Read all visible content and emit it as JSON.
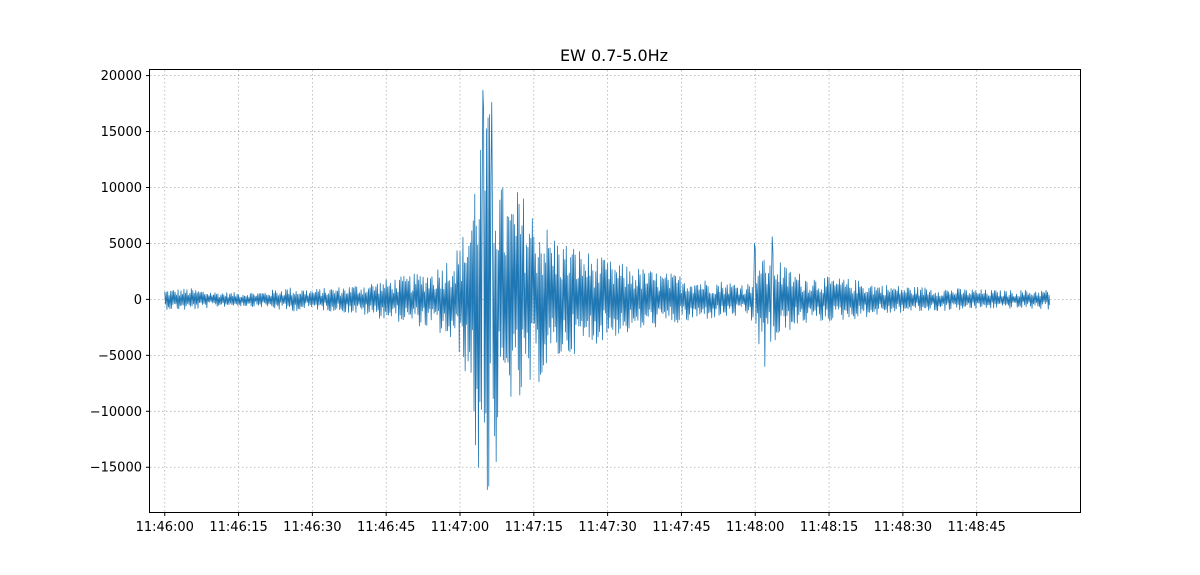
{
  "chart_data": {
    "type": "line",
    "title": "EW 0.7-5.0Hz",
    "xlabel": "",
    "ylabel": "",
    "x_unit": "seconds after 11:46:00",
    "xlim": [
      -3,
      186
    ],
    "ylim": [
      -19000,
      20500
    ],
    "grid": true,
    "legend": "none",
    "x_ticks": [
      {
        "value": 0,
        "label": "11:46:00"
      },
      {
        "value": 15,
        "label": "11:46:15"
      },
      {
        "value": 30,
        "label": "11:46:30"
      },
      {
        "value": 45,
        "label": "11:46:45"
      },
      {
        "value": 60,
        "label": "11:47:00"
      },
      {
        "value": 75,
        "label": "11:47:15"
      },
      {
        "value": 90,
        "label": "11:47:30"
      },
      {
        "value": 105,
        "label": "11:47:45"
      },
      {
        "value": 120,
        "label": "11:48:00"
      },
      {
        "value": 135,
        "label": "11:48:15"
      },
      {
        "value": 150,
        "label": "11:48:30"
      },
      {
        "value": 165,
        "label": "11:48:45"
      }
    ],
    "y_ticks": [
      {
        "value": 20000,
        "label": "20000"
      },
      {
        "value": 15000,
        "label": "15000"
      },
      {
        "value": 10000,
        "label": "10000"
      },
      {
        "value": 5000,
        "label": "5000"
      },
      {
        "value": 0,
        "label": "0"
      },
      {
        "value": -5000,
        "label": "−5000"
      },
      {
        "value": -10000,
        "label": "−10000"
      },
      {
        "value": -15000,
        "label": "−15000"
      }
    ],
    "series": [
      {
        "color": "#1f77b4",
        "x_range": [
          0,
          180
        ],
        "envelope": [
          [
            0,
            900
          ],
          [
            5,
            1000
          ],
          [
            10,
            700
          ],
          [
            15,
            600
          ],
          [
            20,
            700
          ],
          [
            25,
            1100
          ],
          [
            30,
            900
          ],
          [
            35,
            1100
          ],
          [
            40,
            1400
          ],
          [
            45,
            1800
          ],
          [
            50,
            2200
          ],
          [
            55,
            2800
          ],
          [
            58,
            4000
          ],
          [
            60,
            5000
          ],
          [
            62,
            8000
          ],
          [
            64,
            15000
          ],
          [
            65,
            18000
          ],
          [
            66,
            17000
          ],
          [
            67,
            14000
          ],
          [
            68,
            11000
          ],
          [
            70,
            9000
          ],
          [
            72,
            10000
          ],
          [
            75,
            8000
          ],
          [
            80,
            5500
          ],
          [
            85,
            4500
          ],
          [
            90,
            3500
          ],
          [
            95,
            3000
          ],
          [
            100,
            2500
          ],
          [
            105,
            2200
          ],
          [
            110,
            1800
          ],
          [
            115,
            1600
          ],
          [
            119,
            1500
          ],
          [
            120,
            4800
          ],
          [
            122,
            3500
          ],
          [
            124,
            4500
          ],
          [
            126,
            3000
          ],
          [
            130,
            2200
          ],
          [
            135,
            2000
          ],
          [
            140,
            1800
          ],
          [
            145,
            1400
          ],
          [
            150,
            1200
          ],
          [
            160,
            1000
          ],
          [
            170,
            800
          ],
          [
            180,
            900
          ]
        ],
        "peaks": [
          [
            63.8,
            -15000
          ],
          [
            64.6,
            18700
          ],
          [
            65.6,
            -17000
          ],
          [
            66.4,
            17600
          ],
          [
            63.2,
            -13000
          ],
          [
            67.3,
            -14500
          ],
          [
            119.8,
            5000
          ],
          [
            121.9,
            -6000
          ],
          [
            123.4,
            5600
          ]
        ]
      }
    ]
  }
}
